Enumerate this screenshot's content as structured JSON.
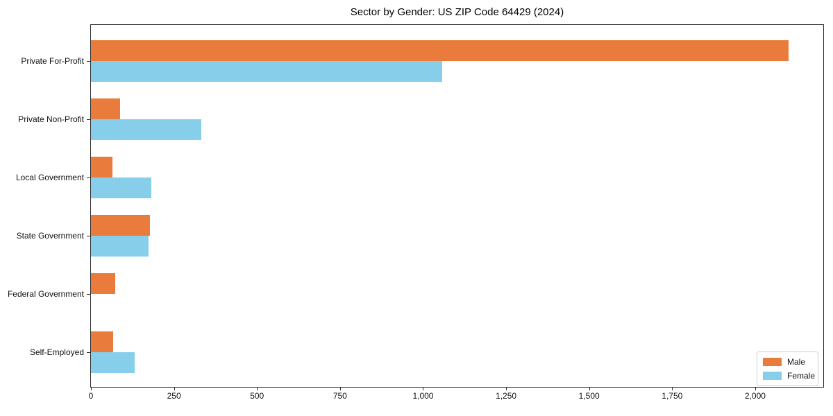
{
  "title": "Sector by Gender: US ZIP Code 64429 (2024)",
  "chart_data": {
    "type": "bar",
    "orientation": "horizontal",
    "title": "Sector by Gender: US ZIP Code 64429 (2024)",
    "categories": [
      "Private For-Profit",
      "Private Non-Profit",
      "Local Government",
      "State Government",
      "Federal Government",
      "Self-Employed"
    ],
    "series": [
      {
        "name": "Male",
        "color": "#E97C3C",
        "values": [
          2100,
          87,
          65,
          178,
          73,
          67
        ]
      },
      {
        "name": "Female",
        "color": "#87CEEB",
        "values": [
          1058,
          333,
          182,
          174,
          0,
          131
        ]
      }
    ],
    "xlabel": "",
    "ylabel": "",
    "xlim": [
      0,
      2205
    ],
    "xticks": {
      "values": [
        0,
        250,
        500,
        750,
        1000,
        1250,
        1500,
        1750,
        2000
      ],
      "labels": [
        "0",
        "250",
        "500",
        "750",
        "1,000",
        "1,250",
        "1,500",
        "1,750",
        "2,000"
      ]
    },
    "grid": false,
    "legend_position": "lower right"
  }
}
